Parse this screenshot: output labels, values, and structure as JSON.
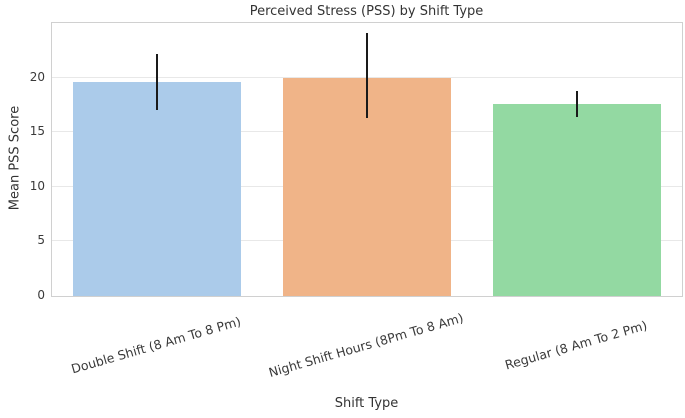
{
  "chart_data": {
    "type": "bar",
    "title": "Perceived Stress (PSS) by Shift Type",
    "xlabel": "Shift Type",
    "ylabel": "Mean PSS Score",
    "categories": [
      "Double Shift (8 Am To 8 Pm)",
      "Night Shift Hours (8Pm To 8 Am)",
      "Regular (8 Am To 2 Pm)"
    ],
    "values": [
      19.6,
      20.0,
      17.6
    ],
    "error_low": [
      17.0,
      16.3,
      16.4
    ],
    "error_high": [
      22.2,
      24.1,
      18.8
    ],
    "bar_colors": [
      "#abcbea",
      "#f0b488",
      "#93d9a2"
    ],
    "error_bar_color": "#1a1a1a",
    "ylim": [
      0,
      25
    ],
    "yticks": [
      0,
      5,
      10,
      15,
      20
    ],
    "grid": "horizontal",
    "gridline_color": "#e8e8e8",
    "spine_color": "#d0d0d0",
    "text_color": "#3a3a3a",
    "bar_width_fraction": 0.8,
    "xtick_rotation_deg": 16,
    "legend": "none"
  }
}
